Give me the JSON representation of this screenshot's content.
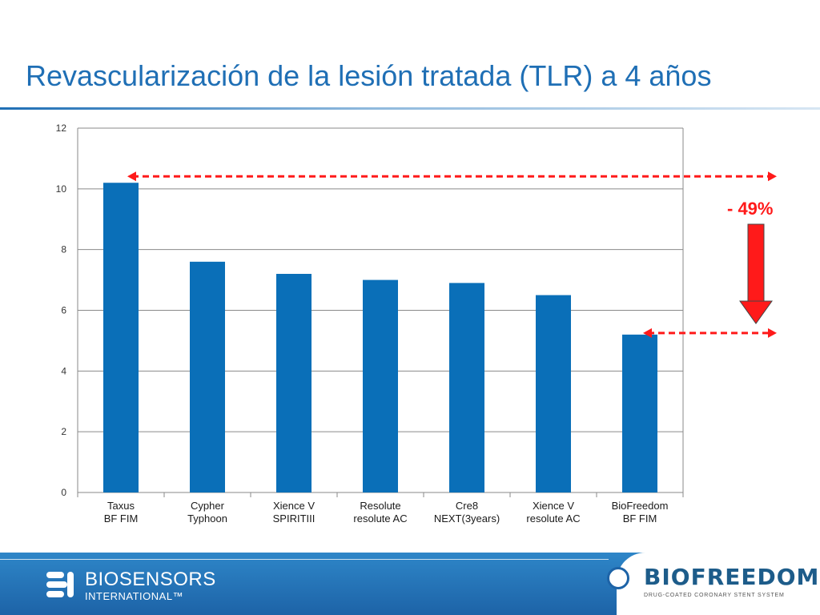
{
  "slide": {
    "title": "Revascularización de la lesión tratada (TLR) a 4 años",
    "reduction_label": "- 49%"
  },
  "chart_data": {
    "type": "bar",
    "categories": [
      [
        "Taxus",
        "BF FIM"
      ],
      [
        "Cypher",
        "Typhoon"
      ],
      [
        "Xience V",
        "SPIRITIII"
      ],
      [
        "Resolute",
        "resolute AC"
      ],
      [
        "Cre8",
        "NEXT(3years)"
      ],
      [
        "Xience V",
        "resolute AC"
      ],
      [
        "BioFreedom",
        "BF FIM"
      ]
    ],
    "values": [
      10.2,
      7.6,
      7.2,
      7.0,
      6.9,
      6.5,
      5.2
    ],
    "ylim": [
      0,
      12
    ],
    "yticks": [
      0,
      2,
      4,
      6,
      8,
      10,
      12
    ],
    "grid": true,
    "legend": "none",
    "bar_color": "#0a6fb8",
    "annotation_color": "#ff1a1a"
  },
  "footer": {
    "company_name": "BIOSENSORS",
    "company_sub": "INTERNATIONAL™",
    "brand_name": "BIOFREEDOM™",
    "brand_tagline": "DRUG-COATED CORONARY STENT SYSTEM",
    "background_color": "#1d63a7"
  }
}
